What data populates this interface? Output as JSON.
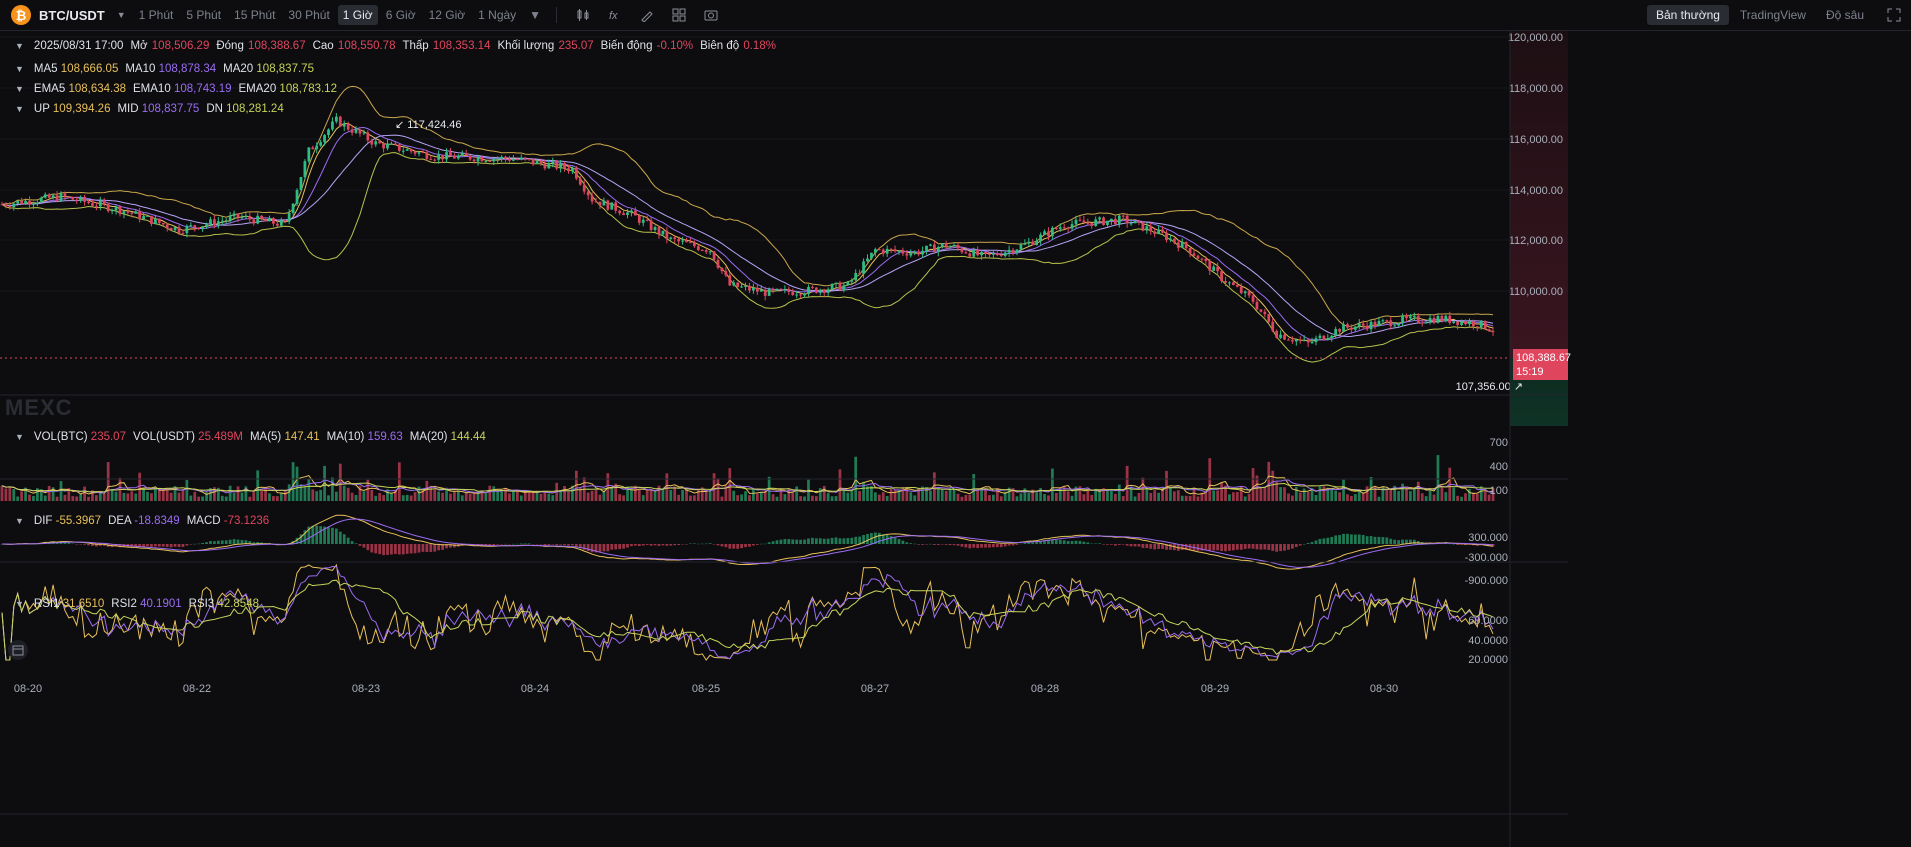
{
  "toolbar": {
    "pair": "BTC/USDT",
    "coin_symbol": "₿",
    "timeframes": [
      "1 Phút",
      "5 Phút",
      "15 Phút",
      "30 Phút",
      "1 Giờ",
      "6 Giờ",
      "12 Giờ",
      "1 Ngày"
    ],
    "active_timeframe": "1 Giờ",
    "views": [
      "Bản thường",
      "TradingView",
      "Độ sâu"
    ],
    "active_view": "Bản thường",
    "icons": [
      "candlestick-type-icon",
      "indicator-icon",
      "draw-icon",
      "layout-icon",
      "screenshot-icon",
      "fullscreen-icon"
    ]
  },
  "ohlc": {
    "date": "2025/08/31 17:00",
    "open_label": "Mở",
    "open": "108,506.29",
    "close_label": "Đóng",
    "close": "108,388.67",
    "high_label": "Cao",
    "high": "108,550.78",
    "low_label": "Thấp",
    "low": "108,353.14",
    "vol_label": "Khối lượng",
    "vol": "235.07",
    "change_label": "Biến động",
    "change": "-0.10%",
    "amp_label": "Biên độ",
    "amp": "0.18%"
  },
  "ma": {
    "ma5_label": "MA5",
    "ma5": "108,666.05",
    "ma10_label": "MA10",
    "ma10": "108,878.34",
    "ma20_label": "MA20",
    "ma20": "108,837.75"
  },
  "ema": {
    "ema5_label": "EMA5",
    "ema5": "108,634.38",
    "ema10_label": "EMA10",
    "ema10": "108,743.19",
    "ema20_label": "EMA20",
    "ema20": "108,783.12"
  },
  "boll": {
    "up_label": "UP",
    "up": "109,394.26",
    "mid_label": "MID",
    "mid": "108,837.75",
    "dn_label": "DN",
    "dn": "108,281.24"
  },
  "price_axis": [
    "120,000.00",
    "118,000.00",
    "116,000.00",
    "114,000.00",
    "112,000.00",
    "110,000.00"
  ],
  "high_marker": "117,424.46",
  "low_marker": "107,356.00",
  "last_price": "108,388.67",
  "countdown": "15:19",
  "watermark": "MEXC",
  "volume": {
    "vol_btc_label": "VOL(BTC)",
    "vol_btc": "235.07",
    "vol_usdt_label": "VOL(USDT)",
    "vol_usdt": "25.489M",
    "ma5_label": "MA(5)",
    "ma5": "147.41",
    "ma10_label": "MA(10)",
    "ma10": "159.63",
    "ma20_label": "MA(20)",
    "ma20": "144.44",
    "axis": [
      "700",
      "400",
      "100"
    ]
  },
  "macd": {
    "dif_label": "DIF",
    "dif": "-55.3967",
    "dea_label": "DEA",
    "dea": "-18.8349",
    "macd_label": "MACD",
    "macd": "-73.1236",
    "axis": [
      "300.000",
      "-300.000",
      "-900.000"
    ]
  },
  "rsi": {
    "rsi1_label": "RSI1",
    "rsi1": "31.6510",
    "rsi2_label": "RSI2",
    "rsi2": "40.1901",
    "rsi3_label": "RSI3",
    "rsi3": "42.8548",
    "axis": [
      "60.0000",
      "40.0000",
      "20.0000"
    ]
  },
  "x_axis": [
    "08-20",
    "08-22",
    "08-23",
    "08-24",
    "08-25",
    "08-27",
    "08-28",
    "08-29",
    "08-30"
  ],
  "colors": {
    "up": "#2ebd85",
    "down": "#e0455e",
    "ma5": "#e8c05a",
    "ma10": "#9b6cf2",
    "ma20": "#c8d45a",
    "bg": "#0d0d10"
  }
}
